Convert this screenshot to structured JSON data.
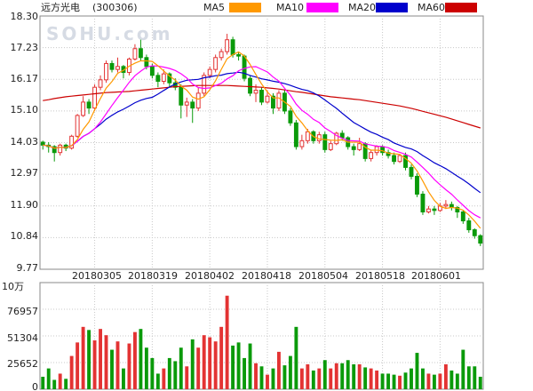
{
  "header": {
    "stock_name": "远方光电",
    "stock_code": "(300306)",
    "legend": [
      {
        "label": "MA5",
        "color": "#ff9900"
      },
      {
        "label": "MA10",
        "color": "#ff00ff"
      },
      {
        "label": "MA20",
        "color": "#0000cc"
      },
      {
        "label": "MA60",
        "color": "#cc0000"
      }
    ]
  },
  "watermark": "SOHU.com",
  "colors": {
    "up": "#e33333",
    "down": "#0a9a0a"
  },
  "chart_data": [
    {
      "type": "candlestick",
      "title": "",
      "ylim": [
        9.77,
        18.3
      ],
      "yticks": [
        "18.30",
        "17.23",
        "16.17",
        "15.10",
        "14.03",
        "12.97",
        "11.90",
        "10.84",
        "9.77"
      ],
      "xticks": [
        "20180305",
        "20180319",
        "20180402",
        "20180418",
        "20180504",
        "20180518",
        "20180601"
      ],
      "xtick_index": [
        9,
        19,
        29,
        39,
        49,
        59,
        69
      ],
      "num_bars": 77,
      "candles": [
        [
          14.05,
          13.95,
          14.1,
          13.8
        ],
        [
          13.95,
          13.9,
          14.05,
          13.7
        ],
        [
          13.9,
          13.7,
          13.95,
          13.4
        ],
        [
          13.7,
          13.95,
          14.0,
          13.6
        ],
        [
          13.95,
          13.85,
          14.0,
          13.75
        ],
        [
          13.85,
          14.25,
          14.3,
          13.8
        ],
        [
          14.25,
          14.95,
          15.0,
          14.2
        ],
        [
          14.95,
          15.4,
          15.6,
          14.9
        ],
        [
          15.4,
          15.2,
          15.5,
          15.0
        ],
        [
          15.2,
          15.9,
          16.0,
          15.1
        ],
        [
          15.9,
          16.15,
          16.3,
          15.8
        ],
        [
          16.15,
          16.7,
          16.8,
          16.05
        ],
        [
          16.7,
          16.5,
          16.8,
          16.4
        ],
        [
          16.5,
          16.6,
          16.9,
          16.4
        ],
        [
          16.6,
          16.4,
          16.65,
          16.2
        ],
        [
          16.4,
          16.85,
          16.9,
          16.3
        ],
        [
          16.85,
          17.2,
          17.35,
          16.8
        ],
        [
          17.2,
          16.9,
          17.5,
          16.8
        ],
        [
          16.9,
          16.6,
          17.0,
          16.5
        ],
        [
          16.6,
          16.3,
          16.7,
          16.2
        ],
        [
          16.3,
          16.1,
          16.4,
          15.9
        ],
        [
          16.1,
          16.35,
          16.5,
          16.0
        ],
        [
          16.35,
          16.05,
          16.4,
          15.9
        ],
        [
          16.05,
          15.9,
          16.2,
          15.8
        ],
        [
          15.9,
          15.3,
          16.0,
          14.85
        ],
        [
          15.3,
          15.4,
          15.55,
          14.9
        ],
        [
          15.4,
          15.2,
          15.5,
          14.7
        ],
        [
          15.2,
          15.7,
          15.9,
          15.1
        ],
        [
          15.7,
          16.3,
          16.4,
          15.6
        ],
        [
          16.3,
          16.5,
          16.6,
          16.2
        ],
        [
          16.5,
          16.9,
          17.0,
          16.4
        ],
        [
          16.9,
          17.1,
          17.2,
          16.8
        ],
        [
          17.1,
          17.5,
          17.7,
          17.0
        ],
        [
          17.5,
          17.0,
          17.6,
          16.9
        ],
        [
          17.0,
          16.95,
          17.1,
          16.8
        ],
        [
          16.95,
          16.2,
          17.0,
          16.1
        ],
        [
          16.2,
          15.7,
          16.3,
          15.6
        ],
        [
          15.7,
          15.8,
          16.0,
          15.4
        ],
        [
          15.8,
          15.4,
          15.9,
          15.3
        ],
        [
          15.4,
          15.6,
          15.8,
          15.35
        ],
        [
          15.6,
          15.2,
          15.7,
          15.0
        ],
        [
          15.2,
          15.7,
          15.8,
          15.1
        ],
        [
          15.7,
          15.1,
          15.8,
          15.0
        ],
        [
          15.1,
          14.7,
          15.2,
          14.6
        ],
        [
          14.7,
          13.9,
          14.8,
          13.8
        ],
        [
          13.9,
          14.1,
          14.3,
          13.8
        ],
        [
          14.1,
          14.4,
          14.5,
          14.0
        ],
        [
          14.4,
          14.1,
          14.45,
          14.0
        ],
        [
          14.1,
          14.3,
          14.4,
          14.0
        ],
        [
          14.3,
          13.8,
          14.4,
          13.7
        ],
        [
          13.8,
          14.0,
          14.1,
          13.75
        ],
        [
          14.0,
          14.35,
          14.4,
          13.95
        ],
        [
          14.35,
          14.2,
          14.45,
          14.1
        ],
        [
          14.2,
          13.9,
          14.25,
          13.8
        ],
        [
          13.9,
          13.8,
          14.0,
          13.6
        ],
        [
          13.8,
          14.0,
          14.2,
          13.75
        ],
        [
          14.0,
          13.5,
          14.05,
          13.4
        ],
        [
          13.5,
          13.7,
          13.8,
          13.4
        ],
        [
          13.7,
          13.9,
          13.95,
          13.6
        ],
        [
          13.9,
          13.7,
          13.95,
          13.6
        ],
        [
          13.7,
          13.6,
          13.8,
          13.5
        ],
        [
          13.6,
          13.4,
          13.7,
          13.3
        ],
        [
          13.4,
          13.6,
          13.65,
          13.35
        ],
        [
          13.6,
          13.2,
          13.7,
          13.1
        ],
        [
          13.2,
          12.9,
          13.3,
          12.8
        ],
        [
          12.9,
          12.3,
          13.0,
          12.2
        ],
        [
          12.3,
          11.7,
          12.4,
          11.6
        ],
        [
          11.7,
          11.8,
          11.9,
          11.65
        ],
        [
          11.8,
          11.75,
          11.9,
          11.6
        ],
        [
          11.75,
          11.9,
          12.0,
          11.7
        ],
        [
          11.9,
          11.95,
          12.1,
          11.8
        ],
        [
          11.95,
          11.85,
          12.05,
          11.75
        ],
        [
          11.85,
          11.7,
          11.9,
          11.5
        ],
        [
          11.7,
          11.4,
          11.75,
          11.3
        ],
        [
          11.4,
          11.1,
          11.5,
          11.0
        ],
        [
          11.1,
          10.9,
          11.15,
          10.8
        ],
        [
          10.9,
          10.65,
          10.95,
          10.55
        ]
      ],
      "ma60": [
        15.45,
        15.48,
        15.52,
        15.55,
        15.58,
        15.6,
        15.62,
        15.64,
        15.66,
        15.68,
        15.7,
        15.72,
        15.73,
        15.74,
        15.75,
        15.76,
        15.78,
        15.8,
        15.82,
        15.84,
        15.86,
        15.88,
        15.9,
        15.92,
        15.93,
        15.94,
        15.95,
        15.96,
        15.96,
        15.96,
        15.96,
        15.96,
        15.96,
        15.95,
        15.94,
        15.93,
        15.92,
        15.91,
        15.9,
        15.88,
        15.86,
        15.84,
        15.81,
        15.78,
        15.75,
        15.73,
        15.7,
        15.67,
        15.64,
        15.61,
        15.58,
        15.56,
        15.54,
        15.52,
        15.5,
        15.48,
        15.45,
        15.42,
        15.39,
        15.36,
        15.33,
        15.3,
        15.27,
        15.23,
        15.19,
        15.14,
        15.09,
        15.04,
        14.99,
        14.94,
        14.89,
        14.83,
        14.77,
        14.71,
        14.65,
        14.59,
        14.53
      ]
    },
    {
      "type": "bar",
      "title": "",
      "ylabel": "10万",
      "ylim": [
        0,
        102609
      ],
      "yticks": [
        "76957",
        "51304",
        "25652",
        "0"
      ],
      "values": [
        12000,
        20000,
        9000,
        15000,
        10000,
        32000,
        45000,
        60000,
        57000,
        47000,
        58000,
        52000,
        38000,
        46000,
        20000,
        44000,
        55000,
        58000,
        40000,
        30000,
        15000,
        20000,
        30000,
        27000,
        40000,
        22000,
        48000,
        40000,
        52000,
        50000,
        46000,
        60000,
        90000,
        42000,
        45000,
        30000,
        44000,
        25000,
        22000,
        14000,
        20000,
        36000,
        23000,
        32000,
        60000,
        20000,
        24000,
        18000,
        20000,
        28000,
        20000,
        25000,
        25000,
        28000,
        24000,
        24000,
        21000,
        20000,
        18000,
        15000,
        15000,
        14000,
        13000,
        16000,
        20000,
        35000,
        20000,
        15000,
        14000,
        15000,
        24000,
        18000,
        15000,
        38000,
        22000,
        22000,
        12000
      ]
    }
  ]
}
